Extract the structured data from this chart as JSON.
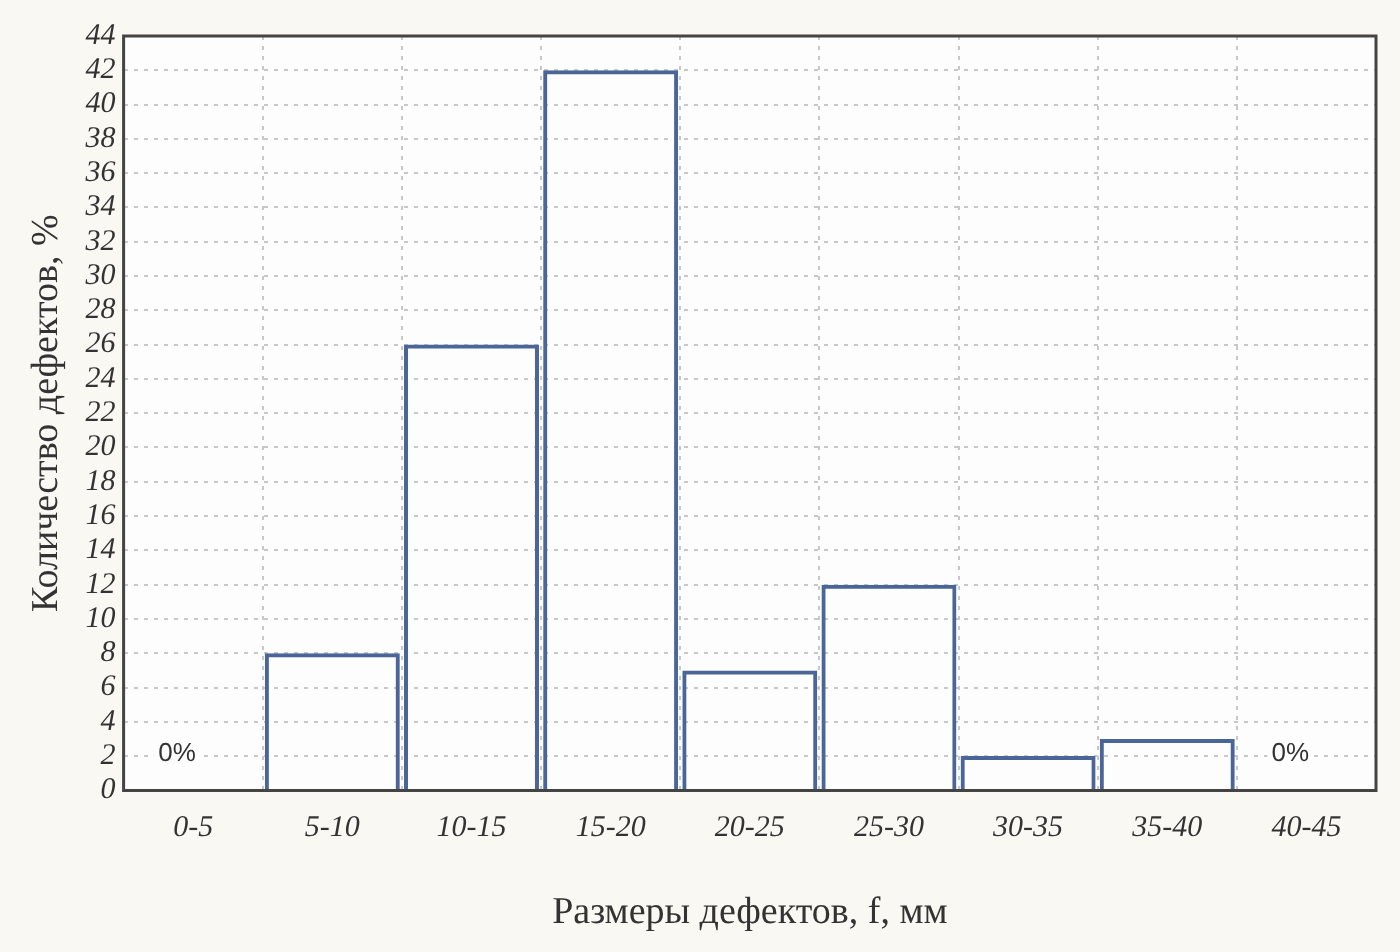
{
  "chart_data": {
    "type": "bar",
    "xlabel": "Размеры дефектов, f, мм",
    "ylabel": "Количество дефектов, %",
    "categories": [
      "0-5",
      "5-10",
      "10-15",
      "15-20",
      "20-25",
      "25-30",
      "30-35",
      "35-40",
      "40-45"
    ],
    "values": [
      0,
      8,
      26,
      42,
      7,
      12,
      2,
      3,
      0
    ],
    "value_labels": [
      "0%",
      null,
      null,
      null,
      null,
      null,
      null,
      null,
      "0%"
    ],
    "color": "#4a6598",
    "ylim": [
      0,
      44
    ],
    "yticks": [
      0,
      2,
      4,
      6,
      8,
      10,
      12,
      14,
      16,
      18,
      20,
      22,
      24,
      26,
      28,
      30,
      32,
      34,
      36,
      38,
      40,
      42,
      44
    ],
    "grid": true
  }
}
